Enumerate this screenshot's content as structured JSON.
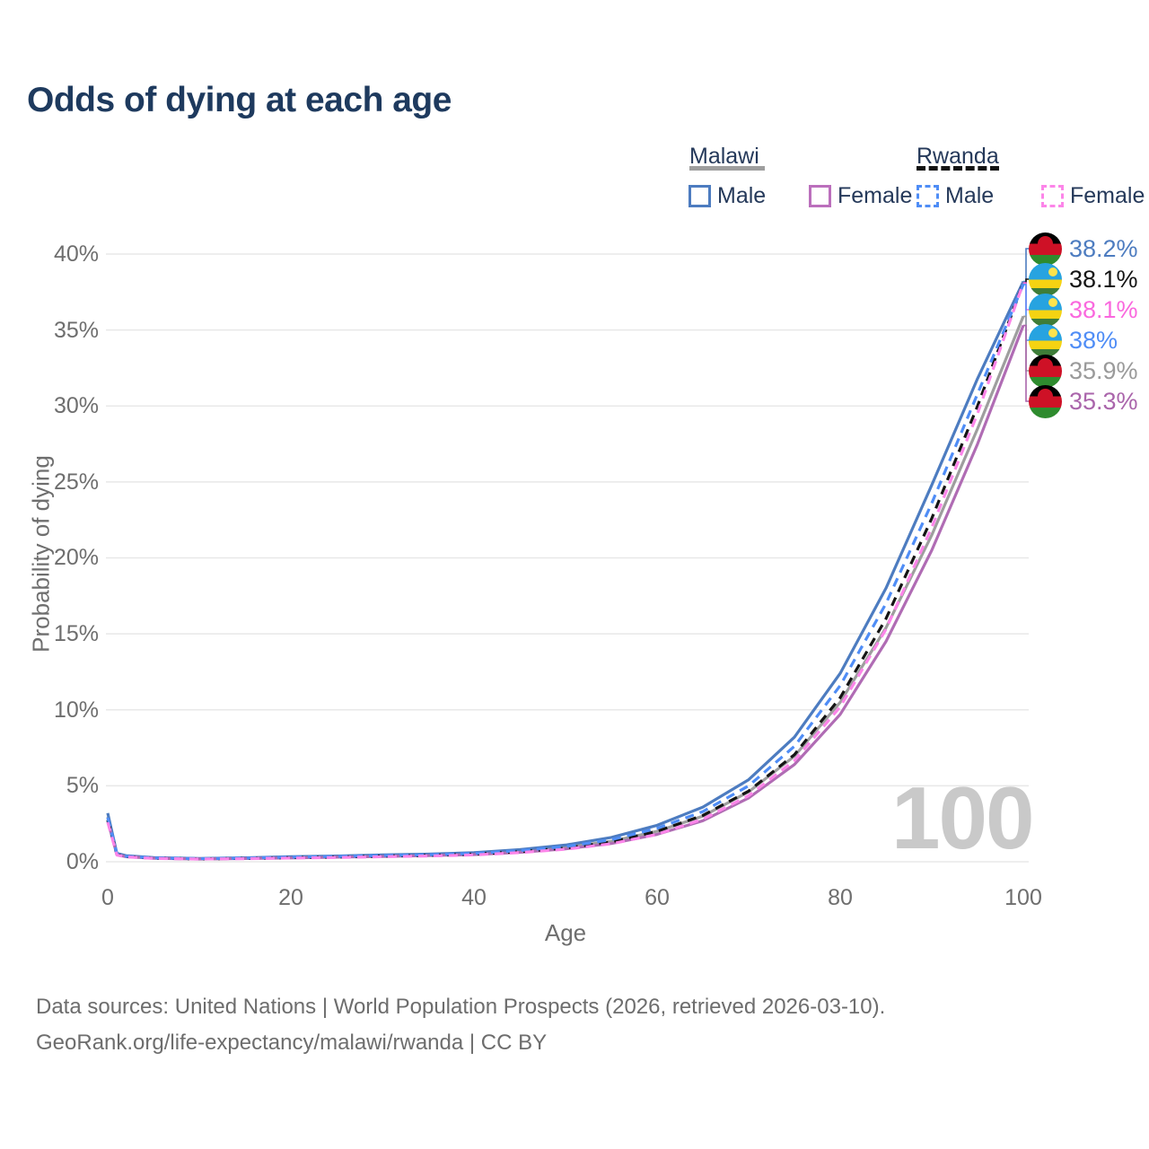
{
  "title": "Odds of dying at each age",
  "legend": {
    "malawi": {
      "country": "Malawi",
      "male": "Male",
      "female": "Female"
    },
    "rwanda": {
      "country": "Rwanda",
      "male": "Male",
      "female": "Female"
    }
  },
  "axes": {
    "y_label": "Probability of dying",
    "x_label": "Age",
    "y_ticks": [
      "0%",
      "5%",
      "10%",
      "15%",
      "20%",
      "25%",
      "30%",
      "35%",
      "40%"
    ],
    "x_ticks": [
      "0",
      "20",
      "40",
      "60",
      "80",
      "100"
    ]
  },
  "watermark": "100",
  "end_labels": [
    {
      "series": "malawi_male",
      "flag": "malawi",
      "text": "38.2%",
      "color": "#4d7cc0"
    },
    {
      "series": "rwanda_total",
      "flag": "rwanda",
      "text": "38.1%",
      "color": "#141414"
    },
    {
      "series": "rwanda_female",
      "flag": "rwanda",
      "text": "38.1%",
      "color": "#fa68de"
    },
    {
      "series": "rwanda_male",
      "flag": "rwanda",
      "text": "38%",
      "color": "#4f8df6"
    },
    {
      "series": "malawi_total",
      "flag": "malawi",
      "text": "35.9%",
      "color": "#9a9a9a"
    },
    {
      "series": "malawi_female",
      "flag": "malawi",
      "text": "35.3%",
      "color": "#aa65ab"
    }
  ],
  "footer": {
    "line1": "Data sources: United Nations | World Population Prospects (2026, retrieved 2026-03-10).",
    "line2": "GeoRank.org/life-expectancy/malawi/rwanda | CC BY"
  },
  "chart_data": {
    "type": "line",
    "title": "Odds of dying at each age",
    "xlabel": "Age",
    "ylabel": "Probability of dying",
    "xlim": [
      0,
      100
    ],
    "ylim": [
      0,
      40
    ],
    "grid": "horizontal",
    "legend_position": "top-right",
    "x": [
      0,
      1,
      2,
      5,
      10,
      15,
      20,
      25,
      30,
      35,
      40,
      45,
      50,
      55,
      60,
      65,
      70,
      75,
      80,
      85,
      90,
      95,
      100
    ],
    "series": [
      {
        "key": "malawi_total",
        "name": "Malawi (both sexes)",
        "color": "#9e9e9e",
        "dash": false,
        "values": [
          2.95,
          0.5,
          0.37,
          0.25,
          0.2,
          0.23,
          0.29,
          0.34,
          0.4,
          0.45,
          0.53,
          0.7,
          0.95,
          1.35,
          2.0,
          3.0,
          4.6,
          6.95,
          10.5,
          15.4,
          21.5,
          28.5,
          35.9
        ]
      },
      {
        "key": "malawi_male",
        "name": "Malawi Male",
        "color": "#4d7cc0",
        "dash": false,
        "values": [
          3.2,
          0.55,
          0.4,
          0.28,
          0.22,
          0.26,
          0.33,
          0.38,
          0.45,
          0.5,
          0.6,
          0.8,
          1.1,
          1.6,
          2.4,
          3.6,
          5.4,
          8.2,
          12.4,
          18.0,
          24.8,
          31.8,
          38.2
        ]
      },
      {
        "key": "malawi_female",
        "name": "Malawi Female",
        "color": "#b06cb4",
        "dash": false,
        "values": [
          2.7,
          0.46,
          0.33,
          0.23,
          0.18,
          0.21,
          0.25,
          0.3,
          0.35,
          0.4,
          0.47,
          0.62,
          0.85,
          1.2,
          1.8,
          2.7,
          4.2,
          6.4,
          9.7,
          14.5,
          20.5,
          27.5,
          35.3
        ]
      },
      {
        "key": "rwanda_total",
        "name": "Rwanda (both sexes)",
        "color": "#141414",
        "dash": true,
        "values": [
          2.75,
          0.47,
          0.34,
          0.23,
          0.19,
          0.22,
          0.27,
          0.31,
          0.37,
          0.42,
          0.5,
          0.66,
          0.9,
          1.3,
          2.0,
          3.05,
          4.65,
          7.05,
          10.8,
          16.0,
          22.6,
          30.0,
          38.1
        ]
      },
      {
        "key": "rwanda_male",
        "name": "Rwanda Male",
        "color": "#4f8df6",
        "dash": true,
        "values": [
          2.9,
          0.5,
          0.36,
          0.25,
          0.2,
          0.24,
          0.3,
          0.35,
          0.41,
          0.46,
          0.55,
          0.73,
          1.0,
          1.45,
          2.2,
          3.3,
          5.0,
          7.6,
          11.6,
          17.0,
          23.6,
          30.8,
          38.0
        ]
      },
      {
        "key": "rwanda_female",
        "name": "Rwanda Female",
        "color": "#fc85e9",
        "dash": true,
        "values": [
          2.6,
          0.44,
          0.32,
          0.22,
          0.18,
          0.2,
          0.24,
          0.28,
          0.33,
          0.38,
          0.45,
          0.6,
          0.82,
          1.18,
          1.8,
          2.8,
          4.35,
          6.65,
          10.2,
          15.3,
          22.0,
          29.5,
          38.1
        ]
      }
    ]
  }
}
